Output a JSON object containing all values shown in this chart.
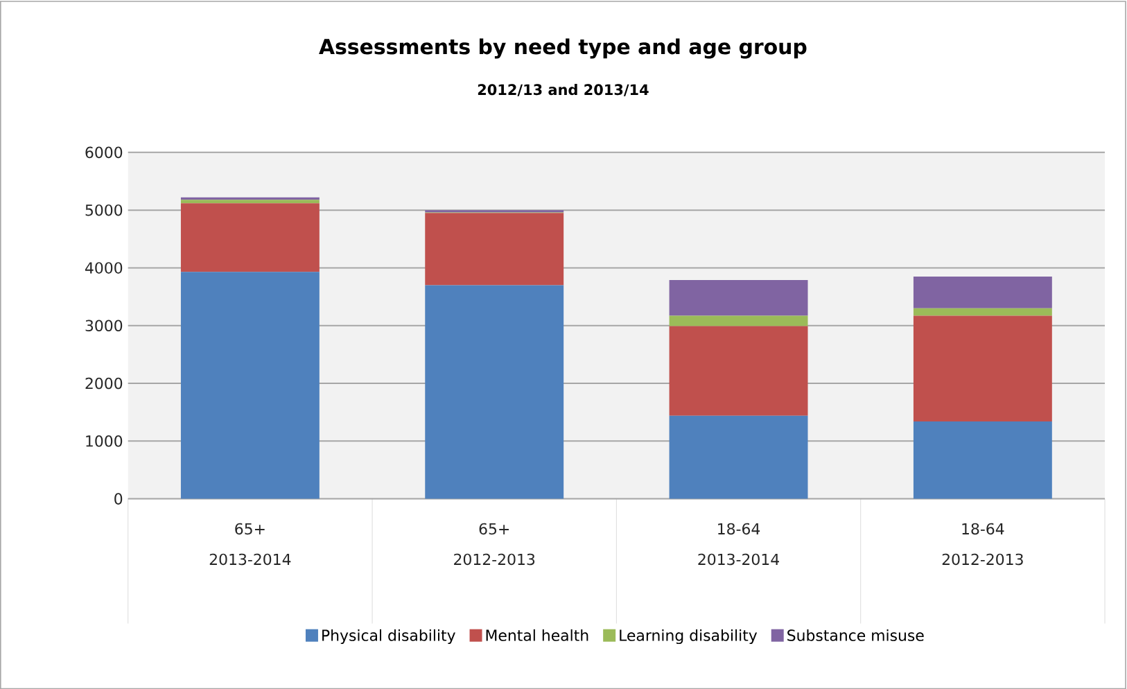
{
  "chart_data": {
    "type": "bar",
    "title": "Assessments by need type and age group",
    "subtitle": "2012/13 and 2013/14",
    "categories": [
      "65+ 2013-2014",
      "65+ 2012-2013",
      "18-64 2013-2014",
      "18-64 2012-2013"
    ],
    "stacked": true,
    "series": [
      {
        "name": "Physical disability",
        "color": "#4f81bd",
        "values": [
          3930,
          3700,
          1440,
          1340
        ]
      },
      {
        "name": "Mental health",
        "color": "#c0504d",
        "values": [
          1190,
          1250,
          1550,
          1830
        ]
      },
      {
        "name": "Learning disability",
        "color": "#9bbb59",
        "values": [
          60,
          10,
          180,
          130
        ]
      },
      {
        "name": "Substance misuse",
        "color": "#8064a2",
        "values": [
          40,
          40,
          620,
          550
        ]
      }
    ],
    "ylim": [
      0,
      6000
    ],
    "yticks": [
      0,
      1000,
      2000,
      3000,
      4000,
      5000,
      6000
    ],
    "grid": "y",
    "legend": "bottom"
  }
}
